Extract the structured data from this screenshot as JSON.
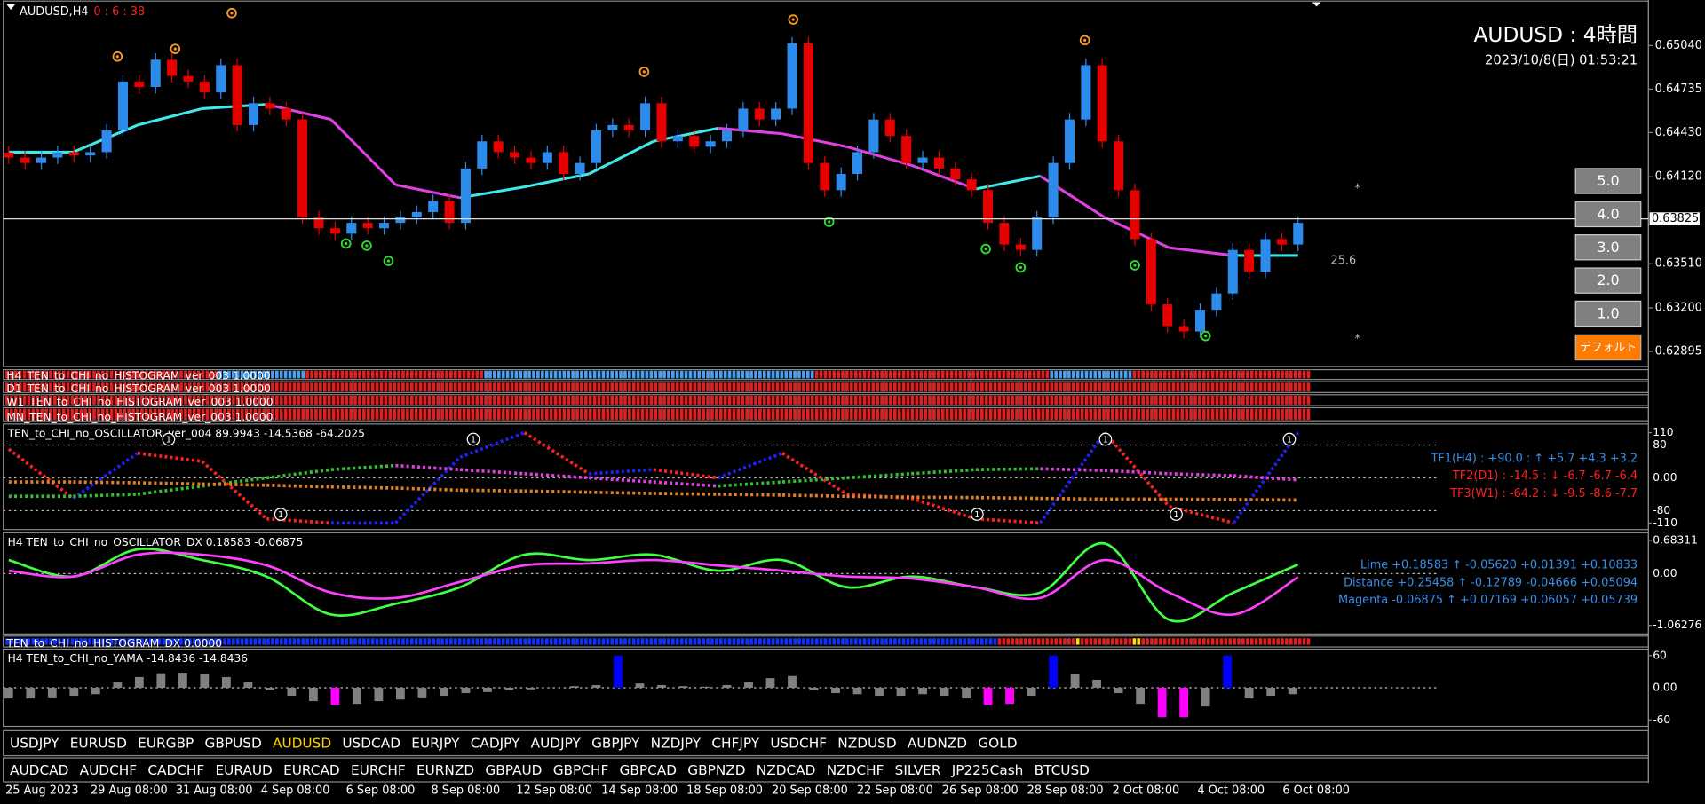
{
  "header": {
    "symbol": "AUDUSD,H4",
    "countdown": "0 : 6 : 38",
    "title": "AUDUSD : 4時間",
    "datetime": "2023/10/8(日) 01:53:21"
  },
  "main_chart": {
    "type": "candlestick",
    "first_open": 0.6429,
    "closes": [
      0.64255,
      0.64217,
      0.64255,
      0.64293,
      0.6427,
      0.64293,
      0.64445,
      0.64788,
      0.6475,
      0.64941,
      0.64827,
      0.64788,
      0.64712,
      0.64903,
      0.64483,
      0.64636,
      0.64598,
      0.64522,
      0.63835,
      0.63759,
      0.63721,
      0.63797,
      0.63759,
      0.63797,
      0.63835,
      0.63873,
      0.6395,
      0.63797,
      0.64178,
      0.64369,
      0.64293,
      0.64255,
      0.64217,
      0.64293,
      0.6414,
      0.64217,
      0.64445,
      0.64483,
      0.64445,
      0.64636,
      0.64369,
      0.64407,
      0.64331,
      0.64369,
      0.64445,
      0.64598,
      0.64522,
      0.64598,
      0.65055,
      0.64217,
      0.64026,
      0.6414,
      0.64293,
      0.64522,
      0.64407,
      0.64217,
      0.64255,
      0.64178,
      0.64102,
      0.64026,
      0.63797,
      0.63645,
      0.63607,
      0.63835,
      0.64217,
      0.64522,
      0.64903,
      0.64369,
      0.64026,
      0.63683,
      0.63225,
      0.63073,
      0.63035,
      0.63187,
      0.63302,
      0.63607,
      0.63454,
      0.63683,
      0.63645,
      0.63797
    ],
    "up_color": "#2d8ceb",
    "down_color": "#e60000",
    "ylim": [
      0.6279,
      0.6536
    ],
    "yticks": [
      {
        "value": 0.6504,
        "label": "0.65040"
      },
      {
        "value": 0.64735,
        "label": "0.64735"
      },
      {
        "value": 0.6443,
        "label": "0.64430"
      },
      {
        "value": 0.6412,
        "label": "0.64120"
      },
      {
        "value": 0.6351,
        "label": "0.63510"
      },
      {
        "value": 0.632,
        "label": "0.63200"
      },
      {
        "value": 0.62895,
        "label": "0.62895"
      }
    ],
    "current_price": {
      "value": 0.63825,
      "label": "0.63825"
    },
    "ma": {
      "values": [
        0.64293,
        0.64293,
        0.64483,
        0.64598,
        0.64628,
        0.64522,
        0.64064,
        0.63973,
        0.64049,
        0.6414,
        0.64369,
        0.64461,
        0.64422,
        0.64331,
        0.64201,
        0.64034,
        0.64125,
        0.63835,
        0.63622,
        0.63568,
        0.63568
      ],
      "rising_color": "#40e8e8",
      "falling_color": "#e040e0"
    },
    "distance_label": "25.6",
    "star": "*"
  },
  "buttons": [
    "5.0",
    "4.0",
    "3.0",
    "2.0",
    "1.0"
  ],
  "default_button": "デフォルト",
  "histograms": {
    "labels": [
      "H4_TEN_to_CHI_no_HISTOGRAM_ver_003 1.0000",
      "D1_TEN_to_CHI_no_HISTOGRAM_ver_003 1.0000",
      "W1_TEN_to_CHI_no_HISTOGRAM_ver_003 1.0000",
      "MN_TEN_to_CHI_no_HISTOGRAM_ver_003 1.0000"
    ]
  },
  "oscillator": {
    "type": "line",
    "label": "TEN_to_CHI_no_OSCILLATOR_ver_004 89.9943 -14.5368 -64.2025",
    "ylim": [
      -126,
      131
    ],
    "yticks": [
      110,
      80,
      {
        "value": 0,
        "label": "0.00"
      },
      -80,
      -110
    ],
    "series": [
      {
        "values": [
          70,
          -50,
          60,
          40,
          -100,
          -110,
          -110,
          50,
          110,
          10,
          20,
          0,
          60,
          -40,
          -50,
          -100,
          -110,
          110,
          -70,
          -110,
          110
        ],
        "rising_color": "#2020ff",
        "falling_color": "#ff2020"
      },
      {
        "values": [
          -45,
          -45,
          -40,
          -20,
          0,
          20,
          30,
          20,
          10,
          0,
          -10,
          -20,
          -10,
          0,
          10,
          20,
          22,
          18,
          10,
          5,
          -5
        ],
        "rising_color": "#30c030",
        "falling_color": "#e040e0"
      },
      {
        "values": [
          -10,
          -10,
          -12,
          -15,
          -18,
          -22,
          -25,
          -30,
          -32,
          -35,
          -38,
          -40,
          -42,
          -45,
          -47,
          -48,
          -50,
          -52,
          -52,
          -53,
          -54
        ],
        "rising_color": "#e08020",
        "falling_color": "#e08020"
      }
    ],
    "readouts": [
      "TF1(H4) : +90.0 : ↑ +5.7 +4.3 +3.2",
      "TF2(D1) : -14.5 : ↓ -6.7 -6.7 -6.4",
      "TF3(W1) : -64.2 : ↓ -9.5 -8.6 -7.7"
    ],
    "cycle_label": "1"
  },
  "dx": {
    "type": "line",
    "label": "H4 TEN_to_CHI_no_OSCILLATOR_DX 0.18583 -0.06875",
    "ylim": [
      -1.24,
      0.84
    ],
    "yticks": [
      0.68311,
      {
        "value": 0,
        "label": "0.00"
      },
      -1.06276
    ],
    "series": [
      {
        "color": "#40ff40",
        "values": [
          0.28,
          -0.06,
          0.5,
          0.28,
          -0.06,
          -0.84,
          -0.62,
          -0.28,
          0.39,
          0.28,
          0.39,
          0.06,
          0.28,
          -0.28,
          -0.06,
          -0.28,
          -0.39,
          0.62,
          -0.95,
          -0.39,
          0.19
        ]
      },
      {
        "color": "#ff40ff",
        "values": [
          0.06,
          -0.06,
          0.39,
          0.39,
          0.17,
          -0.39,
          -0.5,
          -0.17,
          0.17,
          0.21,
          0.28,
          0.17,
          0.06,
          -0.06,
          -0.1,
          -0.28,
          -0.5,
          0.28,
          -0.39,
          -0.84,
          -0.07
        ]
      }
    ],
    "readouts": [
      "Lime +0.18583 ↑ -0.05620 +0.01391 +0.10833",
      "Distance +0.25458 ↑ -0.12789 -0.04666 +0.05094",
      "Magenta -0.06875 ↑ +0.07169 +0.06057 +0.05739"
    ]
  },
  "histogram_dx": {
    "label": "TEN_to_CHI_no_HISTOGRAM_DX 0.0000"
  },
  "yama": {
    "type": "bar",
    "label": "H4  TEN_to_CHI_no_YAMA -14.8436 -14.8436",
    "ylim": [
      -72,
      72
    ],
    "yticks": [
      60,
      {
        "value": 0,
        "label": "0.00"
      },
      -60
    ],
    "values": [
      -20,
      -20,
      -18,
      -15,
      -12,
      10,
      20,
      27,
      28,
      25,
      20,
      10,
      -5,
      -15,
      -25,
      -32,
      -30,
      -25,
      -22,
      -18,
      -15,
      -10,
      -8,
      -5,
      -3,
      0,
      3,
      5,
      60,
      8,
      5,
      3,
      2,
      5,
      10,
      18,
      22,
      -5,
      -10,
      -12,
      -15,
      -15,
      -12,
      -15,
      -20,
      -32,
      -30,
      -15,
      60,
      25,
      15,
      -10,
      -30,
      -55,
      -55,
      -35,
      60,
      -20,
      -15,
      -12
    ],
    "colors": [
      "#808080",
      "#808080",
      "#808080",
      "#808080",
      "#808080",
      "#808080",
      "#808080",
      "#808080",
      "#808080",
      "#808080",
      "#808080",
      "#808080",
      "#808080",
      "#808080",
      "#808080",
      "#ff00ff",
      "#808080",
      "#808080",
      "#808080",
      "#808080",
      "#808080",
      "#808080",
      "#808080",
      "#808080",
      "#808080",
      "#808080",
      "#808080",
      "#808080",
      "#0000ff",
      "#808080",
      "#808080",
      "#808080",
      "#808080",
      "#808080",
      "#808080",
      "#808080",
      "#808080",
      "#808080",
      "#808080",
      "#808080",
      "#808080",
      "#808080",
      "#808080",
      "#808080",
      "#808080",
      "#ff00ff",
      "#ff00ff",
      "#808080",
      "#0000ff",
      "#808080",
      "#808080",
      "#808080",
      "#808080",
      "#ff00ff",
      "#ff00ff",
      "#808080",
      "#0000ff",
      "#808080",
      "#808080",
      "#808080"
    ]
  },
  "symbols": {
    "row1": [
      "USDJPY",
      "EURUSD",
      "EURGBP",
      "GBPUSD",
      "AUDUSD",
      "USDCAD",
      "EURJPY",
      "CADJPY",
      "AUDJPY",
      "GBPJPY",
      "NZDJPY",
      "CHFJPY",
      "USDCHF",
      "NZDUSD",
      "AUDNZD",
      "GOLD"
    ],
    "row2": [
      "AUDCAD",
      "AUDCHF",
      "CADCHF",
      "EURAUD",
      "EURCAD",
      "EURCHF",
      "EURNZD",
      "GBPAUD",
      "GBPCHF",
      "GBPCAD",
      "GBPNZD",
      "NZDCAD",
      "NZDCHF",
      "SILVER",
      "JP225Cash",
      "BTCUSD"
    ],
    "active": "AUDUSD"
  },
  "dates": [
    "25 Aug 2023",
    "29 Aug 08:00",
    "31 Aug 08:00",
    "4 Sep 08:00",
    "6 Sep 08:00",
    "8 Sep 08:00",
    "12 Sep 08:00",
    "14 Sep 08:00",
    "18 Sep 08:00",
    "20 Sep 08:00",
    "22 Sep 08:00",
    "26 Sep 08:00",
    "28 Sep 08:00",
    "2 Oct 08:00",
    "4 Oct 08:00",
    "6 Oct 08:00"
  ]
}
